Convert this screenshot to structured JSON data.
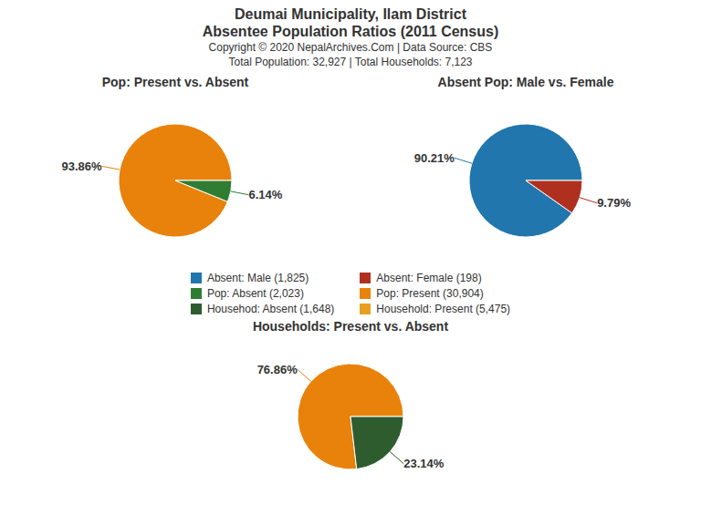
{
  "title": "Deumai Municipality, Ilam District",
  "subtitle": "Absentee Population Ratios (2011 Census)",
  "annotations": [
    "Copyright © 2020 NepalArchives.Com | Data Source: CBS",
    "Total Population: 32,927 | Total Households: 7,123"
  ],
  "legend_entries": [
    {
      "label": "Absent: Male (1,825)",
      "color": "#2176ae"
    },
    {
      "label": "Absent: Female (198)",
      "color": "#b03020"
    },
    {
      "label": "Pop: Absent (2,023)",
      "color": "#2e7d32"
    },
    {
      "label": "Pop: Present (30,904)",
      "color": "#e8820a"
    },
    {
      "label": "Househod: Absent (1,648)",
      "color": "#2e5c2e"
    },
    {
      "label": "Household: Present (5,475)",
      "color": "#e8a020"
    }
  ],
  "chart_data": [
    {
      "type": "pie",
      "title": "Pop: Present vs. Absent",
      "values": [
        93.86,
        6.14
      ],
      "value_labels": [
        "93.86%",
        "6.14%"
      ],
      "colors": [
        "#e8820a",
        "#2e7d32"
      ],
      "data_labels": true
    },
    {
      "type": "pie",
      "title": "Absent Pop: Male vs. Female",
      "values": [
        90.21,
        9.79
      ],
      "value_labels": [
        "90.21%",
        "9.79%"
      ],
      "colors": [
        "#2176ae",
        "#b03020"
      ],
      "data_labels": true
    },
    {
      "type": "pie",
      "title": "Households: Present vs. Absent",
      "values": [
        76.86,
        23.14
      ],
      "value_labels": [
        "76.86%",
        "23.14%"
      ],
      "colors": [
        "#e8820a",
        "#2e5c2e"
      ],
      "data_labels": true
    }
  ]
}
